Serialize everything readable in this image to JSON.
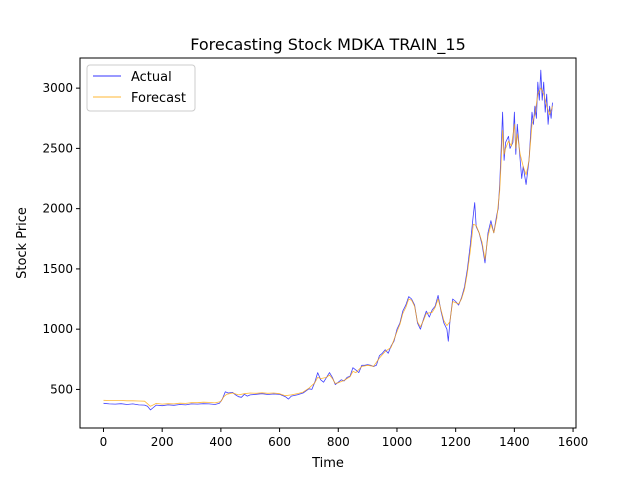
{
  "chart_data": {
    "type": "line",
    "title": "Forecasting Stock MDKA TRAIN_15",
    "xlabel": "Time",
    "ylabel": "Stock Price",
    "xlim": [
      -80,
      1610
    ],
    "ylim": [
      180,
      3250
    ],
    "xticks": [
      0,
      200,
      400,
      600,
      800,
      1000,
      1200,
      1400,
      1600
    ],
    "yticks": [
      500,
      1000,
      1500,
      2000,
      2500,
      3000
    ],
    "grid": false,
    "legend_position": "top-left",
    "series": [
      {
        "name": "Actual",
        "color": "#0000ff",
        "points": [
          [
            0,
            385
          ],
          [
            20,
            380
          ],
          [
            40,
            378
          ],
          [
            60,
            382
          ],
          [
            80,
            375
          ],
          [
            100,
            380
          ],
          [
            120,
            372
          ],
          [
            140,
            370
          ],
          [
            150,
            360
          ],
          [
            160,
            330
          ],
          [
            170,
            350
          ],
          [
            180,
            370
          ],
          [
            200,
            365
          ],
          [
            220,
            372
          ],
          [
            240,
            368
          ],
          [
            260,
            375
          ],
          [
            280,
            372
          ],
          [
            300,
            380
          ],
          [
            320,
            378
          ],
          [
            340,
            382
          ],
          [
            360,
            380
          ],
          [
            380,
            375
          ],
          [
            395,
            385
          ],
          [
            405,
            420
          ],
          [
            415,
            480
          ],
          [
            425,
            470
          ],
          [
            440,
            475
          ],
          [
            450,
            455
          ],
          [
            460,
            440
          ],
          [
            470,
            435
          ],
          [
            480,
            460
          ],
          [
            490,
            445
          ],
          [
            500,
            455
          ],
          [
            520,
            460
          ],
          [
            540,
            465
          ],
          [
            560,
            458
          ],
          [
            580,
            462
          ],
          [
            600,
            460
          ],
          [
            620,
            440
          ],
          [
            630,
            420
          ],
          [
            640,
            445
          ],
          [
            660,
            455
          ],
          [
            680,
            470
          ],
          [
            700,
            505
          ],
          [
            710,
            500
          ],
          [
            720,
            560
          ],
          [
            730,
            640
          ],
          [
            740,
            580
          ],
          [
            750,
            560
          ],
          [
            760,
            600
          ],
          [
            770,
            640
          ],
          [
            780,
            600
          ],
          [
            790,
            540
          ],
          [
            800,
            560
          ],
          [
            810,
            580
          ],
          [
            820,
            570
          ],
          [
            830,
            600
          ],
          [
            840,
            610
          ],
          [
            850,
            680
          ],
          [
            860,
            660
          ],
          [
            870,
            640
          ],
          [
            880,
            700
          ],
          [
            890,
            700
          ],
          [
            900,
            705
          ],
          [
            910,
            700
          ],
          [
            920,
            690
          ],
          [
            930,
            700
          ],
          [
            940,
            780
          ],
          [
            950,
            800
          ],
          [
            960,
            830
          ],
          [
            970,
            800
          ],
          [
            980,
            860
          ],
          [
            990,
            900
          ],
          [
            1000,
            1000
          ],
          [
            1010,
            1050
          ],
          [
            1020,
            1150
          ],
          [
            1030,
            1200
          ],
          [
            1040,
            1270
          ],
          [
            1050,
            1250
          ],
          [
            1060,
            1200
          ],
          [
            1070,
            1050
          ],
          [
            1080,
            1000
          ],
          [
            1090,
            1080
          ],
          [
            1100,
            1150
          ],
          [
            1110,
            1100
          ],
          [
            1120,
            1160
          ],
          [
            1130,
            1190
          ],
          [
            1140,
            1280
          ],
          [
            1150,
            1150
          ],
          [
            1160,
            1050
          ],
          [
            1170,
            1000
          ],
          [
            1175,
            900
          ],
          [
            1180,
            1050
          ],
          [
            1190,
            1250
          ],
          [
            1200,
            1230
          ],
          [
            1210,
            1200
          ],
          [
            1220,
            1260
          ],
          [
            1230,
            1350
          ],
          [
            1240,
            1500
          ],
          [
            1250,
            1700
          ],
          [
            1258,
            1900
          ],
          [
            1265,
            2050
          ],
          [
            1270,
            1850
          ],
          [
            1280,
            1800
          ],
          [
            1290,
            1700
          ],
          [
            1300,
            1550
          ],
          [
            1310,
            1800
          ],
          [
            1320,
            1900
          ],
          [
            1330,
            1800
          ],
          [
            1340,
            1950
          ],
          [
            1345,
            2000
          ],
          [
            1350,
            2200
          ],
          [
            1355,
            2500
          ],
          [
            1360,
            2800
          ],
          [
            1365,
            2400
          ],
          [
            1370,
            2550
          ],
          [
            1380,
            2600
          ],
          [
            1385,
            2500
          ],
          [
            1395,
            2550
          ],
          [
            1400,
            2800
          ],
          [
            1405,
            2450
          ],
          [
            1410,
            2700
          ],
          [
            1420,
            2400
          ],
          [
            1425,
            2250
          ],
          [
            1430,
            2350
          ],
          [
            1440,
            2200
          ],
          [
            1450,
            2400
          ],
          [
            1455,
            2600
          ],
          [
            1460,
            2800
          ],
          [
            1465,
            2700
          ],
          [
            1470,
            2850
          ],
          [
            1475,
            2750
          ],
          [
            1480,
            3050
          ],
          [
            1485,
            2900
          ],
          [
            1490,
            3150
          ],
          [
            1495,
            2900
          ],
          [
            1500,
            3050
          ],
          [
            1505,
            2800
          ],
          [
            1510,
            2950
          ],
          [
            1515,
            2700
          ],
          [
            1520,
            2850
          ],
          [
            1525,
            2750
          ],
          [
            1530,
            2880
          ]
        ]
      },
      {
        "name": "Forecast",
        "color": "#ffa500",
        "points": [
          [
            0,
            410
          ],
          [
            20,
            408
          ],
          [
            40,
            408
          ],
          [
            60,
            408
          ],
          [
            80,
            406
          ],
          [
            100,
            406
          ],
          [
            120,
            404
          ],
          [
            140,
            402
          ],
          [
            160,
            360
          ],
          [
            180,
            384
          ],
          [
            200,
            378
          ],
          [
            220,
            382
          ],
          [
            240,
            380
          ],
          [
            260,
            386
          ],
          [
            280,
            384
          ],
          [
            300,
            390
          ],
          [
            320,
            390
          ],
          [
            340,
            394
          ],
          [
            360,
            392
          ],
          [
            380,
            388
          ],
          [
            400,
            400
          ],
          [
            410,
            440
          ],
          [
            420,
            460
          ],
          [
            440,
            470
          ],
          [
            460,
            455
          ],
          [
            480,
            465
          ],
          [
            500,
            470
          ],
          [
            520,
            468
          ],
          [
            540,
            472
          ],
          [
            560,
            468
          ],
          [
            580,
            470
          ],
          [
            600,
            465
          ],
          [
            620,
            448
          ],
          [
            640,
            455
          ],
          [
            660,
            465
          ],
          [
            680,
            478
          ],
          [
            700,
            510
          ],
          [
            720,
            555
          ],
          [
            730,
            600
          ],
          [
            740,
            590
          ],
          [
            760,
            600
          ],
          [
            770,
            620
          ],
          [
            780,
            590
          ],
          [
            790,
            550
          ],
          [
            800,
            555
          ],
          [
            820,
            575
          ],
          [
            840,
            605
          ],
          [
            850,
            650
          ],
          [
            860,
            640
          ],
          [
            880,
            690
          ],
          [
            900,
            700
          ],
          [
            920,
            692
          ],
          [
            940,
            760
          ],
          [
            960,
            815
          ],
          [
            980,
            850
          ],
          [
            1000,
            980
          ],
          [
            1010,
            1040
          ],
          [
            1020,
            1130
          ],
          [
            1030,
            1180
          ],
          [
            1040,
            1250
          ],
          [
            1050,
            1240
          ],
          [
            1060,
            1190
          ],
          [
            1070,
            1060
          ],
          [
            1080,
            1020
          ],
          [
            1090,
            1070
          ],
          [
            1100,
            1130
          ],
          [
            1120,
            1140
          ],
          [
            1130,
            1180
          ],
          [
            1140,
            1250
          ],
          [
            1150,
            1160
          ],
          [
            1160,
            1070
          ],
          [
            1170,
            1030
          ],
          [
            1180,
            1060
          ],
          [
            1190,
            1230
          ],
          [
            1200,
            1220
          ],
          [
            1210,
            1210
          ],
          [
            1220,
            1250
          ],
          [
            1230,
            1330
          ],
          [
            1240,
            1470
          ],
          [
            1250,
            1650
          ],
          [
            1260,
            1870
          ],
          [
            1270,
            1860
          ],
          [
            1280,
            1800
          ],
          [
            1290,
            1720
          ],
          [
            1300,
            1580
          ],
          [
            1310,
            1770
          ],
          [
            1320,
            1870
          ],
          [
            1330,
            1800
          ],
          [
            1340,
            1920
          ],
          [
            1350,
            2150
          ],
          [
            1355,
            2400
          ],
          [
            1360,
            2650
          ],
          [
            1365,
            2450
          ],
          [
            1370,
            2500
          ],
          [
            1380,
            2560
          ],
          [
            1390,
            2520
          ],
          [
            1400,
            2700
          ],
          [
            1405,
            2500
          ],
          [
            1410,
            2620
          ],
          [
            1420,
            2450
          ],
          [
            1430,
            2350
          ],
          [
            1440,
            2280
          ],
          [
            1450,
            2400
          ],
          [
            1460,
            2700
          ],
          [
            1470,
            2780
          ],
          [
            1480,
            2950
          ],
          [
            1490,
            3000
          ],
          [
            1500,
            2950
          ],
          [
            1510,
            2850
          ],
          [
            1520,
            2780
          ],
          [
            1530,
            2850
          ]
        ]
      }
    ]
  }
}
